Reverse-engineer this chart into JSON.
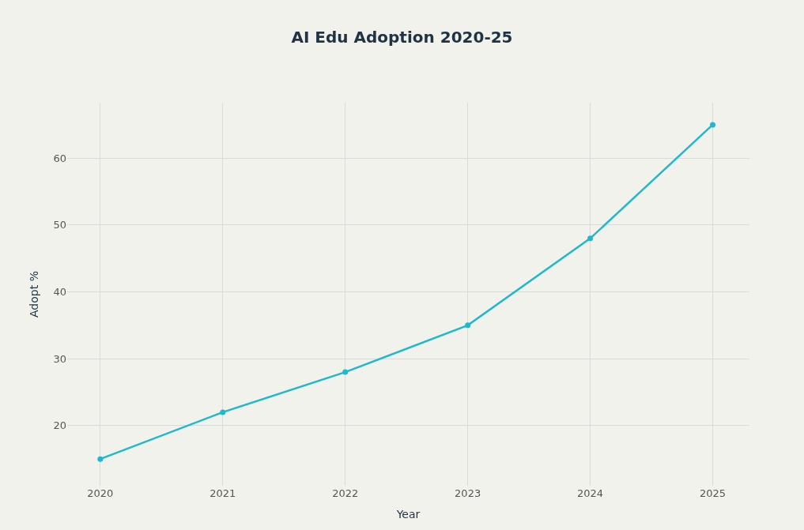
{
  "chart_data": {
    "type": "line",
    "title": "AI Edu Adoption 2020-25",
    "xlabel": "Year",
    "ylabel": "Adopt %",
    "x": [
      2020,
      2021,
      2022,
      2023,
      2024,
      2025
    ],
    "series": [
      {
        "color": "#1fb8cd",
        "values": [
          15,
          22,
          28,
          35,
          48,
          65
        ]
      }
    ],
    "xlim": [
      2019.73,
      2025.3
    ],
    "xticks": [
      2020,
      2021,
      2022,
      2023,
      2024,
      2025
    ],
    "ylim": [
      11,
      68.3
    ],
    "yticks": [
      20,
      30,
      40,
      50,
      60
    ],
    "grid": true,
    "marker": "circle",
    "line_style": "solid"
  }
}
